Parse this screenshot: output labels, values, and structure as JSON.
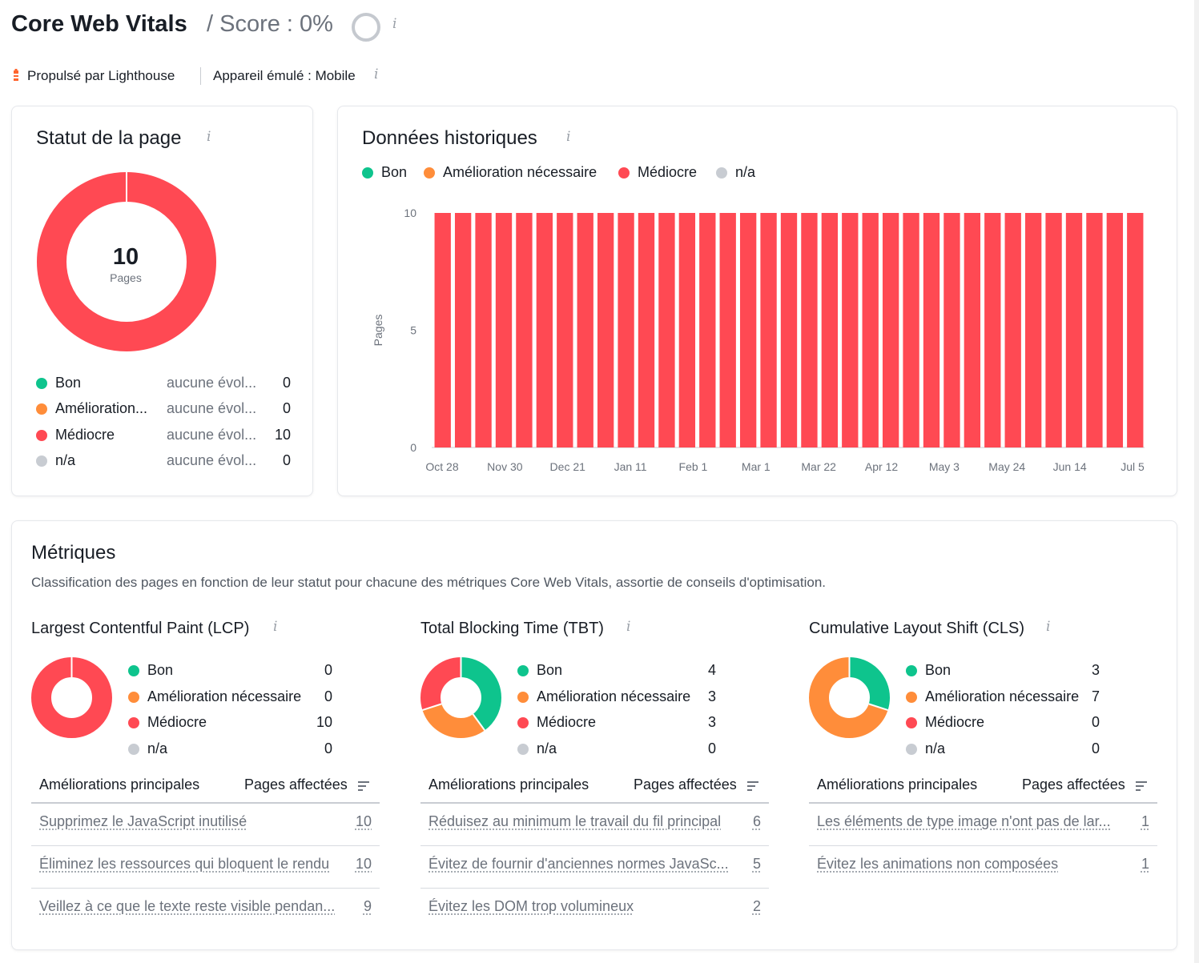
{
  "header": {
    "title": "Core Web Vitals",
    "score_text": "/ Score : 0%",
    "powered_by": "Propulsé par Lighthouse",
    "device": "Appareil émulé : Mobile"
  },
  "colors": {
    "good": "#0ec48d",
    "needs": "#ff8d3a",
    "poor": "#ff4953",
    "na": "#c8ccd2",
    "ring": "#c5c9cf"
  },
  "page_status": {
    "title": "Statut de la page",
    "center_value": "10",
    "center_label": "Pages",
    "rows": [
      {
        "label": "Bon",
        "change": "aucune évol...",
        "value": "0"
      },
      {
        "label": "Amélioration...",
        "change": "aucune évol...",
        "value": "0"
      },
      {
        "label": "Médiocre",
        "change": "aucune évol...",
        "value": "10"
      },
      {
        "label": "n/a",
        "change": "aucune évol...",
        "value": "0"
      }
    ]
  },
  "historical": {
    "title": "Données historiques",
    "legend": [
      "Bon",
      "Amélioration nécessaire",
      "Médiocre",
      "n/a"
    ]
  },
  "chart_data": {
    "type": "bar",
    "ylabel": "Pages",
    "ylim": [
      0,
      10
    ],
    "yticks": [
      "10",
      "5",
      "0"
    ],
    "xticks": [
      "Oct 28",
      "Nov 30",
      "Dec 21",
      "Jan 11",
      "Feb 1",
      "Mar 1",
      "Mar 22",
      "Apr 12",
      "May 3",
      "May 24",
      "Jun 14",
      "Jul 5"
    ],
    "series": [
      {
        "name": "Médiocre",
        "values": [
          10,
          10,
          10,
          10,
          10,
          10,
          10,
          10,
          10,
          10,
          10,
          10,
          10,
          10,
          10,
          10,
          10,
          10,
          10,
          10,
          10,
          10,
          10,
          10,
          10,
          10,
          10,
          10,
          10,
          10,
          10,
          10,
          10,
          10,
          10
        ]
      }
    ]
  },
  "metrics": {
    "title": "Métriques",
    "description": "Classification des pages en fonction de leur statut pour chacune des métriques Core Web Vitals, assortie de conseils d'optimisation.",
    "col_header_left": "Améliorations principales",
    "col_header_right": "Pages affectées",
    "legend_labels": [
      "Bon",
      "Amélioration nécessaire",
      "Médiocre",
      "n/a"
    ],
    "panels": [
      {
        "title": "Largest Contentful Paint (LCP)",
        "values": [
          0,
          0,
          10,
          0
        ],
        "improvements": [
          {
            "text": "Supprimez le JavaScript inutilisé",
            "count": "10"
          },
          {
            "text": "Éliminez les ressources qui bloquent le rendu",
            "count": "10"
          },
          {
            "text": "Veillez à ce que le texte reste visible pendan...",
            "count": "9"
          }
        ]
      },
      {
        "title": "Total Blocking Time (TBT)",
        "values": [
          4,
          3,
          3,
          0
        ],
        "improvements": [
          {
            "text": "Réduisez au minimum le travail du fil principal",
            "count": "6"
          },
          {
            "text": "Évitez de fournir d'anciennes normes JavaSc...",
            "count": "5"
          },
          {
            "text": "Évitez les DOM trop volumineux",
            "count": "2"
          }
        ]
      },
      {
        "title": "Cumulative Layout Shift (CLS)",
        "values": [
          3,
          7,
          0,
          0
        ],
        "improvements": [
          {
            "text": "Les éléments de type image n'ont pas de lar...",
            "count": "1"
          },
          {
            "text": "Évitez les animations non composées",
            "count": "1"
          }
        ]
      }
    ]
  }
}
